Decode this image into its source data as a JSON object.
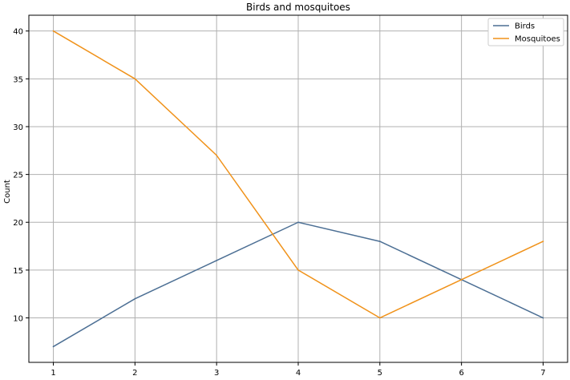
{
  "chart_data": {
    "type": "line",
    "title": "Birds and mosquitoes",
    "xlabel": "",
    "ylabel": "Count",
    "x": [
      1,
      2,
      3,
      4,
      5,
      6,
      7
    ],
    "xticks": [
      1,
      2,
      3,
      4,
      5,
      6,
      7
    ],
    "yticks": [
      10,
      15,
      20,
      25,
      30,
      35,
      40
    ],
    "xlim": [
      0.7,
      7.3
    ],
    "ylim": [
      5.35,
      41.65
    ],
    "grid": true,
    "legend_position": "top-right",
    "series": [
      {
        "name": "Birds",
        "color": "#4c6f94",
        "values": [
          7,
          12,
          16,
          20,
          18,
          14,
          10
        ]
      },
      {
        "name": "Mosquitoes",
        "color": "#f0921a",
        "values": [
          40,
          35,
          27,
          15,
          10,
          14,
          18
        ]
      }
    ]
  }
}
